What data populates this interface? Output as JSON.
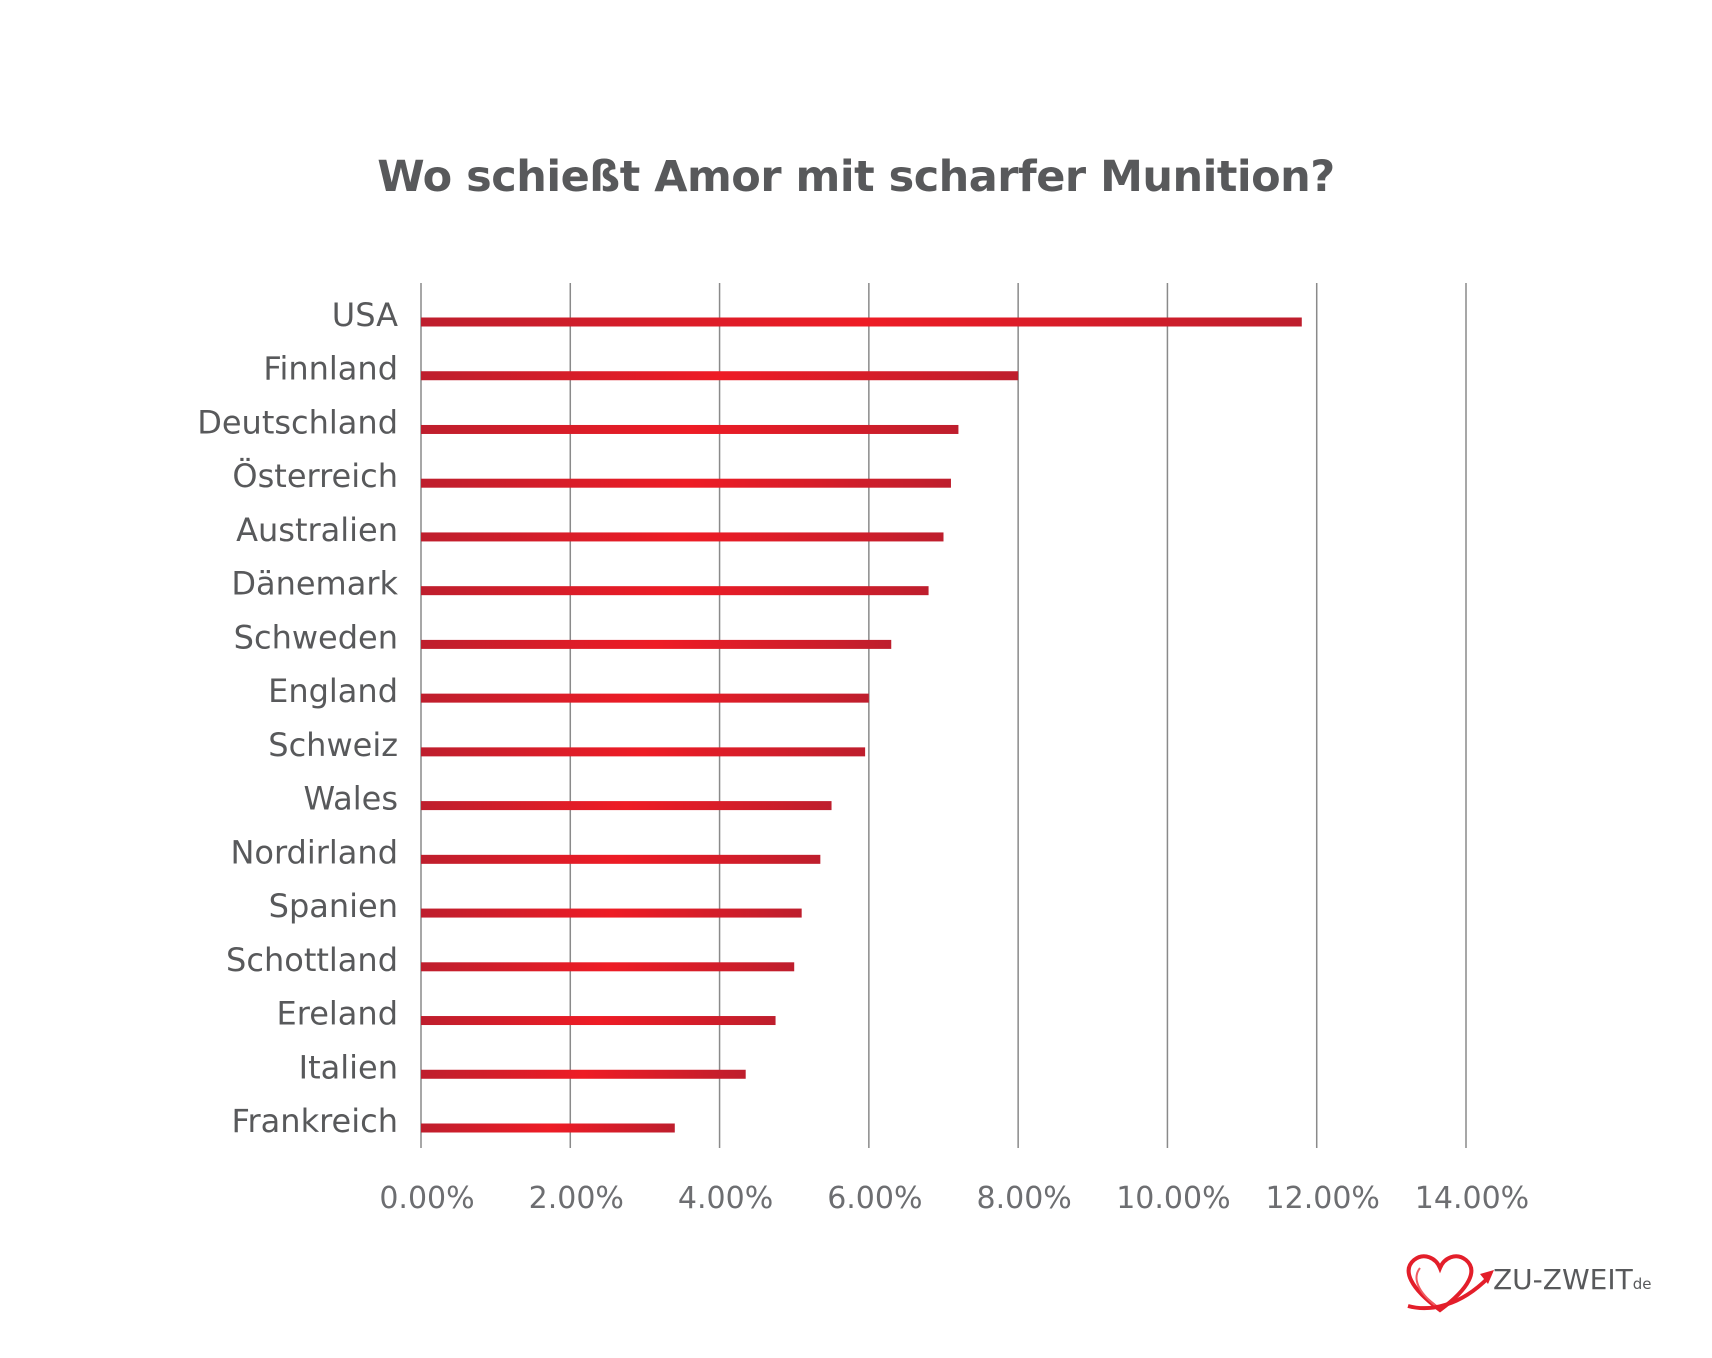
{
  "chart_data": {
    "type": "bar",
    "orientation": "horizontal",
    "title": "Wo schießt Amor mit scharfer Munition?",
    "categories": [
      "USA",
      "Finnland",
      "Deutschland",
      "Österreich",
      "Australien",
      "Dänemark",
      "Schweden",
      "England",
      "Schweiz",
      "Wales",
      "Nordirland",
      "Spanien",
      "Schottland",
      "Ereland",
      "Italien",
      "Frankreich"
    ],
    "values": [
      11.8,
      8.0,
      7.2,
      7.1,
      7.0,
      6.8,
      6.3,
      6.0,
      5.95,
      5.5,
      5.35,
      5.1,
      5.0,
      4.75,
      4.35,
      3.4
    ],
    "xlim": [
      0,
      14
    ],
    "x_ticks": [
      0,
      2,
      4,
      6,
      8,
      10,
      12,
      14
    ],
    "x_tick_labels": [
      "0.00%",
      "2.00%",
      "4.00%",
      "6.00%",
      "8.00%",
      "10.00%",
      "12.00%",
      "14.00%"
    ],
    "grid": true,
    "xlabel": "",
    "ylabel": ""
  },
  "colors": {
    "bar": "#e31e2a",
    "bar_dark": "#be1e2d",
    "grid": "#8a8a8a",
    "text": "#58595b",
    "logo_red": "#e31e2a"
  },
  "logo": {
    "icon": "heart-arrow-icon",
    "text": "ZU-ZWEIT",
    "suffix": "de"
  }
}
